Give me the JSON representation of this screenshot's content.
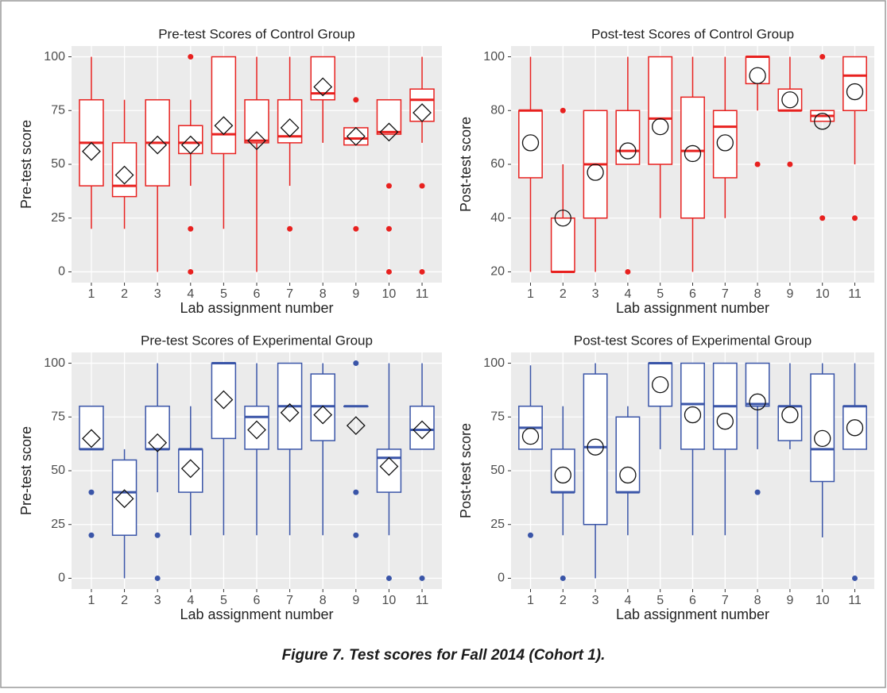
{
  "chart_data": [
    {
      "type": "box",
      "title": "Pre-test Scores of Control Group",
      "xlabel": "Lab assignment number",
      "ylabel": "Pre-test score",
      "color": "#e8211f",
      "mean_marker": "diamond",
      "grid": true,
      "categories": [
        "1",
        "2",
        "3",
        "4",
        "5",
        "6",
        "7",
        "8",
        "9",
        "10",
        "11"
      ],
      "ylim": [
        -5,
        105
      ],
      "yticks": [
        0,
        25,
        50,
        75,
        100
      ],
      "boxes": [
        {
          "min": 20,
          "q1": 40,
          "median": 60,
          "q3": 80,
          "max": 100,
          "mean": 56,
          "outliers": []
        },
        {
          "min": 20,
          "q1": 35,
          "median": 40,
          "q3": 60,
          "max": 80,
          "mean": 45,
          "outliers": []
        },
        {
          "min": 0,
          "q1": 40,
          "median": 60,
          "q3": 80,
          "max": 80,
          "mean": 59,
          "outliers": []
        },
        {
          "min": 40,
          "q1": 55,
          "median": 60,
          "q3": 68,
          "max": 80,
          "mean": 59,
          "outliers": [
            100,
            20,
            0
          ]
        },
        {
          "min": 20,
          "q1": 55,
          "median": 64,
          "q3": 100,
          "max": 100,
          "mean": 68,
          "outliers": []
        },
        {
          "min": 0,
          "q1": 60,
          "median": 61,
          "q3": 80,
          "max": 100,
          "mean": 61,
          "outliers": []
        },
        {
          "min": 40,
          "q1": 60,
          "median": 63,
          "q3": 80,
          "max": 100,
          "mean": 67,
          "outliers": [
            20
          ]
        },
        {
          "min": 60,
          "q1": 80,
          "median": 83,
          "q3": 100,
          "max": 100,
          "mean": 86,
          "outliers": []
        },
        {
          "min": 59,
          "q1": 59,
          "median": 62,
          "q3": 67,
          "max": 67,
          "mean": 63,
          "outliers": [
            80,
            20
          ]
        },
        {
          "min": 64,
          "q1": 64,
          "median": 65,
          "q3": 80,
          "max": 80,
          "mean": 65,
          "outliers": [
            40,
            20,
            0
          ]
        },
        {
          "min": 60,
          "q1": 70,
          "median": 80,
          "q3": 85,
          "max": 100,
          "mean": 74,
          "outliers": [
            40,
            0
          ]
        }
      ]
    },
    {
      "type": "box",
      "title": "Post-test Scores of Control Group",
      "xlabel": "Lab assignment number",
      "ylabel": "Post-test score",
      "color": "#e8211f",
      "mean_marker": "circle",
      "grid": true,
      "categories": [
        "1",
        "2",
        "3",
        "4",
        "5",
        "6",
        "7",
        "8",
        "9",
        "10",
        "11"
      ],
      "ylim": [
        16,
        104
      ],
      "yticks": [
        20,
        40,
        60,
        80,
        100
      ],
      "boxes": [
        {
          "min": 20,
          "q1": 55,
          "median": 80,
          "q3": 80,
          "max": 100,
          "mean": 68,
          "outliers": []
        },
        {
          "min": 20,
          "q1": 20,
          "median": 20,
          "q3": 40,
          "max": 60,
          "mean": 40,
          "outliers": [
            80
          ]
        },
        {
          "min": 20,
          "q1": 40,
          "median": 60,
          "q3": 80,
          "max": 80,
          "mean": 57,
          "outliers": []
        },
        {
          "min": 60,
          "q1": 60,
          "median": 65,
          "q3": 80,
          "max": 100,
          "mean": 65,
          "outliers": [
            20
          ]
        },
        {
          "min": 40,
          "q1": 60,
          "median": 77,
          "q3": 100,
          "max": 100,
          "mean": 74,
          "outliers": []
        },
        {
          "min": 20,
          "q1": 40,
          "median": 65,
          "q3": 85,
          "max": 100,
          "mean": 64,
          "outliers": []
        },
        {
          "min": 40,
          "q1": 55,
          "median": 74,
          "q3": 80,
          "max": 100,
          "mean": 68,
          "outliers": []
        },
        {
          "min": 80,
          "q1": 90,
          "median": 100,
          "q3": 100,
          "max": 100,
          "mean": 93,
          "outliers": [
            60
          ]
        },
        {
          "min": 80,
          "q1": 80,
          "median": 80,
          "q3": 88,
          "max": 100,
          "mean": 84,
          "outliers": [
            60
          ]
        },
        {
          "min": 76,
          "q1": 76,
          "median": 78,
          "q3": 80,
          "max": 80,
          "mean": 76,
          "outliers": [
            100,
            40
          ]
        },
        {
          "min": 60,
          "q1": 80,
          "median": 93,
          "q3": 100,
          "max": 100,
          "mean": 87,
          "outliers": [
            40
          ]
        }
      ]
    },
    {
      "type": "box",
      "title": "Pre-test Scores of Experimental Group",
      "xlabel": "Lab assignment number",
      "ylabel": "Pre-test score",
      "color": "#3a55a8",
      "mean_marker": "diamond",
      "grid": true,
      "categories": [
        "1",
        "2",
        "3",
        "4",
        "5",
        "6",
        "7",
        "8",
        "9",
        "10",
        "11"
      ],
      "ylim": [
        -5,
        105
      ],
      "yticks": [
        0,
        25,
        50,
        75,
        100
      ],
      "boxes": [
        {
          "min": 60,
          "q1": 60,
          "median": 60,
          "q3": 80,
          "max": 80,
          "mean": 65,
          "outliers": [
            40,
            20
          ]
        },
        {
          "min": 0,
          "q1": 20,
          "median": 40,
          "q3": 55,
          "max": 60,
          "mean": 37,
          "outliers": []
        },
        {
          "min": 40,
          "q1": 60,
          "median": 60,
          "q3": 80,
          "max": 100,
          "mean": 63,
          "outliers": [
            20,
            0
          ]
        },
        {
          "min": 20,
          "q1": 40,
          "median": 60,
          "q3": 60,
          "max": 80,
          "mean": 51,
          "outliers": []
        },
        {
          "min": 20,
          "q1": 65,
          "median": 100,
          "q3": 100,
          "max": 100,
          "mean": 83,
          "outliers": []
        },
        {
          "min": 20,
          "q1": 60,
          "median": 75,
          "q3": 80,
          "max": 100,
          "mean": 69,
          "outliers": []
        },
        {
          "min": 20,
          "q1": 60,
          "median": 80,
          "q3": 100,
          "max": 100,
          "mean": 77,
          "outliers": []
        },
        {
          "min": 20,
          "q1": 64,
          "median": 80,
          "q3": 95,
          "max": 100,
          "mean": 76,
          "outliers": []
        },
        {
          "min": 80,
          "q1": 80,
          "median": 80,
          "q3": 80,
          "max": 80,
          "mean": 71,
          "outliers": [
            100,
            40,
            20
          ]
        },
        {
          "min": 20,
          "q1": 40,
          "median": 56,
          "q3": 60,
          "max": 100,
          "mean": 52,
          "outliers": [
            0
          ]
        },
        {
          "min": 60,
          "q1": 60,
          "median": 69,
          "q3": 80,
          "max": 100,
          "mean": 69,
          "outliers": [
            0
          ]
        }
      ]
    },
    {
      "type": "box",
      "title": "Post-test Scores of Experimental Group",
      "xlabel": "Lab assignment number",
      "ylabel": "Post-test score",
      "color": "#3a55a8",
      "mean_marker": "circle",
      "grid": true,
      "categories": [
        "1",
        "2",
        "3",
        "4",
        "5",
        "6",
        "7",
        "8",
        "9",
        "10",
        "11"
      ],
      "ylim": [
        -5,
        105
      ],
      "yticks": [
        0,
        25,
        50,
        75,
        100
      ],
      "boxes": [
        {
          "min": 60,
          "q1": 60,
          "median": 70,
          "q3": 80,
          "max": 99,
          "mean": 66,
          "outliers": [
            20
          ]
        },
        {
          "min": 20,
          "q1": 40,
          "median": 40,
          "q3": 60,
          "max": 80,
          "mean": 48,
          "outliers": [
            0
          ]
        },
        {
          "min": 0,
          "q1": 25,
          "median": 61,
          "q3": 95,
          "max": 100,
          "mean": 61,
          "outliers": []
        },
        {
          "min": 20,
          "q1": 40,
          "median": 40,
          "q3": 75,
          "max": 80,
          "mean": 48,
          "outliers": []
        },
        {
          "min": 60,
          "q1": 80,
          "median": 100,
          "q3": 100,
          "max": 100,
          "mean": 90,
          "outliers": []
        },
        {
          "min": 20,
          "q1": 60,
          "median": 81,
          "q3": 100,
          "max": 100,
          "mean": 76,
          "outliers": []
        },
        {
          "min": 20,
          "q1": 60,
          "median": 80,
          "q3": 100,
          "max": 100,
          "mean": 73,
          "outliers": []
        },
        {
          "min": 60,
          "q1": 80,
          "median": 81,
          "q3": 100,
          "max": 100,
          "mean": 82,
          "outliers": [
            40
          ]
        },
        {
          "min": 60,
          "q1": 64,
          "median": 80,
          "q3": 80,
          "max": 100,
          "mean": 76,
          "outliers": []
        },
        {
          "min": 19,
          "q1": 45,
          "median": 60,
          "q3": 95,
          "max": 100,
          "mean": 65,
          "outliers": []
        },
        {
          "min": 60,
          "q1": 60,
          "median": 80,
          "q3": 80,
          "max": 100,
          "mean": 70,
          "outliers": [
            0
          ]
        }
      ]
    }
  ],
  "caption": "Figure 7. Test scores for Fall 2014 (Cohort 1)."
}
